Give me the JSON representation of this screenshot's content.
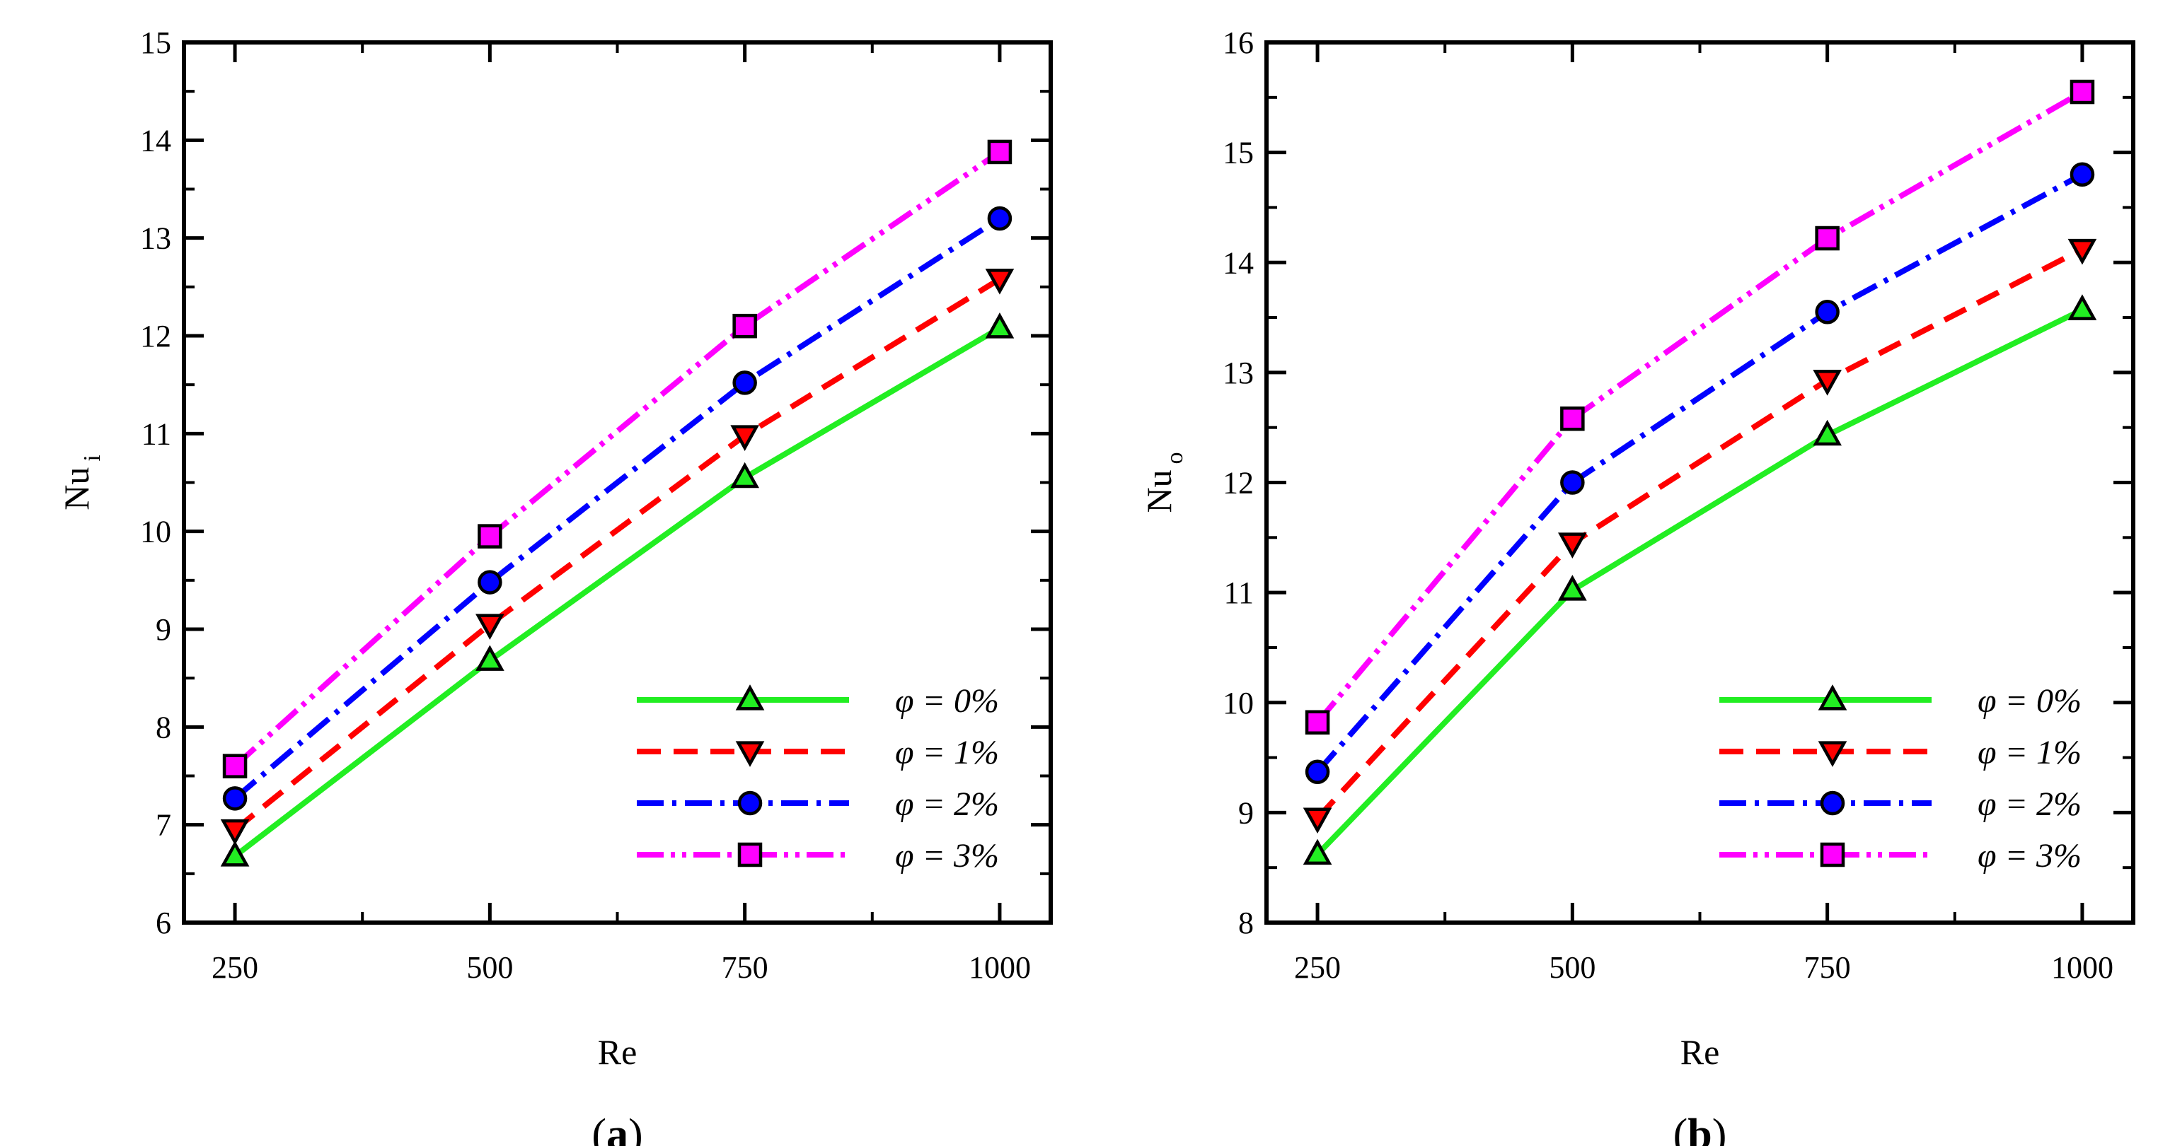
{
  "chart_data": [
    {
      "type": "line",
      "panel_label_open": "(",
      "panel_label_letter": "a",
      "panel_label_close": ")",
      "xlabel": "Re",
      "ylabel": "Nu",
      "ylabel_sub": "i",
      "x": [
        250,
        500,
        750,
        1000
      ],
      "xticks": [
        "250",
        "500",
        "750",
        "1000"
      ],
      "xlim": [
        200,
        1050
      ],
      "ylim": [
        6,
        15
      ],
      "yticks": [
        "6",
        "7",
        "8",
        "9",
        "10",
        "11",
        "12",
        "13",
        "14",
        "15"
      ],
      "legend_position": "bottom-right",
      "series": [
        {
          "name": "φ = 0%",
          "values": [
            6.68,
            8.68,
            10.55,
            12.08
          ],
          "color": "#22ee22",
          "marker": "triangle-up",
          "dash": "solid"
        },
        {
          "name": "φ = 1%",
          "values": [
            6.95,
            9.05,
            10.98,
            12.58
          ],
          "color": "#ff0000",
          "marker": "triangle-down",
          "dash": "dash"
        },
        {
          "name": "φ = 2%",
          "values": [
            7.27,
            9.48,
            11.52,
            13.2
          ],
          "color": "#0000ff",
          "marker": "circle",
          "dash": "dashdot"
        },
        {
          "name": "φ = 3%",
          "values": [
            7.6,
            9.95,
            12.1,
            13.88
          ],
          "color": "#ff00ff",
          "marker": "square",
          "dash": "dashdotdot"
        }
      ]
    },
    {
      "type": "line",
      "panel_label_open": "(",
      "panel_label_letter": "b",
      "panel_label_close": ")",
      "xlabel": "Re",
      "ylabel": "Nu",
      "ylabel_sub": "o",
      "x": [
        250,
        500,
        750,
        1000
      ],
      "xticks": [
        "250",
        "500",
        "750",
        "1000"
      ],
      "xlim": [
        200,
        1050
      ],
      "ylim": [
        8,
        16
      ],
      "yticks": [
        "8",
        "9",
        "10",
        "11",
        "12",
        "13",
        "14",
        "15",
        "16"
      ],
      "legend_position": "bottom-right",
      "series": [
        {
          "name": "φ = 0%",
          "values": [
            8.62,
            11.02,
            12.43,
            13.57
          ],
          "color": "#22ee22",
          "marker": "triangle-up",
          "dash": "solid"
        },
        {
          "name": "φ = 1%",
          "values": [
            8.95,
            11.45,
            12.93,
            14.12
          ],
          "color": "#ff0000",
          "marker": "triangle-down",
          "dash": "dash"
        },
        {
          "name": "φ = 2%",
          "values": [
            9.37,
            12.0,
            13.55,
            14.8
          ],
          "color": "#0000ff",
          "marker": "circle",
          "dash": "dashdot"
        },
        {
          "name": "φ = 3%",
          "values": [
            9.82,
            12.58,
            14.22,
            15.55
          ],
          "color": "#ff00ff",
          "marker": "square",
          "dash": "dashdotdot"
        }
      ]
    }
  ]
}
